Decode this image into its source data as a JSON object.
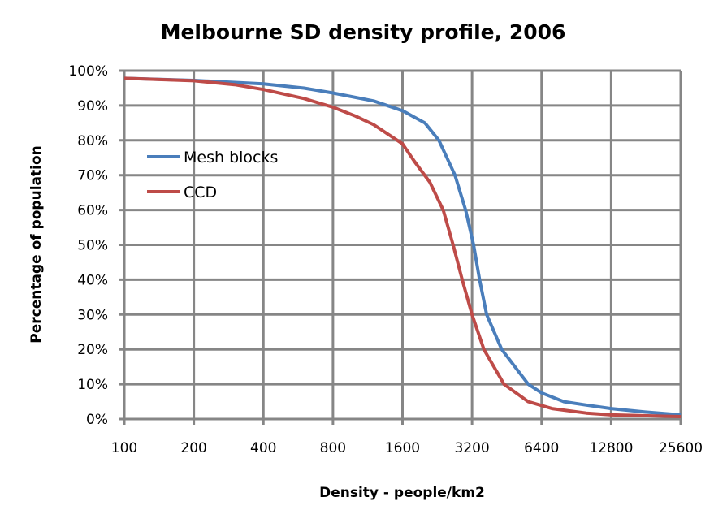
{
  "chart_data": {
    "type": "line",
    "title": "Melbourne SD density profile, 2006",
    "xlabel": "Density - people/km2",
    "ylabel": "Percentage of population",
    "xscale": "log2",
    "xlim": [
      100,
      25600
    ],
    "ylim": [
      0,
      100
    ],
    "xticks": [
      "100",
      "200",
      "400",
      "800",
      "1600",
      "3200",
      "6400",
      "12800",
      "25600"
    ],
    "yticks": [
      "0%",
      "10%",
      "20%",
      "30%",
      "40%",
      "50%",
      "60%",
      "70%",
      "80%",
      "90%",
      "100%"
    ],
    "grid": true,
    "legend_position": "left-middle",
    "series": [
      {
        "name": "Mesh blocks",
        "color": "#4A7EBB",
        "points": [
          [
            100,
            97.8
          ],
          [
            200,
            97.2
          ],
          [
            400,
            96.2
          ],
          [
            600,
            95
          ],
          [
            800,
            93.6
          ],
          [
            1200,
            91.3
          ],
          [
            1600,
            88.5
          ],
          [
            2000,
            85
          ],
          [
            2300,
            80
          ],
          [
            2700,
            70
          ],
          [
            3000,
            60
          ],
          [
            3250,
            50
          ],
          [
            3450,
            40
          ],
          [
            3700,
            30
          ],
          [
            4300,
            20
          ],
          [
            5600,
            10
          ],
          [
            6400,
            7.5
          ],
          [
            8000,
            5
          ],
          [
            10000,
            4
          ],
          [
            12800,
            3
          ],
          [
            18000,
            2
          ],
          [
            25600,
            1.2
          ]
        ]
      },
      {
        "name": "CCD",
        "color": "#BE4B48",
        "points": [
          [
            100,
            97.8
          ],
          [
            200,
            97.1
          ],
          [
            300,
            96
          ],
          [
            400,
            94.6
          ],
          [
            600,
            92
          ],
          [
            800,
            89.5
          ],
          [
            1000,
            87
          ],
          [
            1200,
            84.5
          ],
          [
            1600,
            79
          ],
          [
            1800,
            74
          ],
          [
            2100,
            68
          ],
          [
            2400,
            60
          ],
          [
            2650,
            50
          ],
          [
            2900,
            40
          ],
          [
            3200,
            30
          ],
          [
            3600,
            20
          ],
          [
            4400,
            10
          ],
          [
            5600,
            5
          ],
          [
            7100,
            3
          ],
          [
            10000,
            1.7
          ],
          [
            12800,
            1.2
          ],
          [
            25600,
            0.7
          ]
        ]
      }
    ]
  }
}
